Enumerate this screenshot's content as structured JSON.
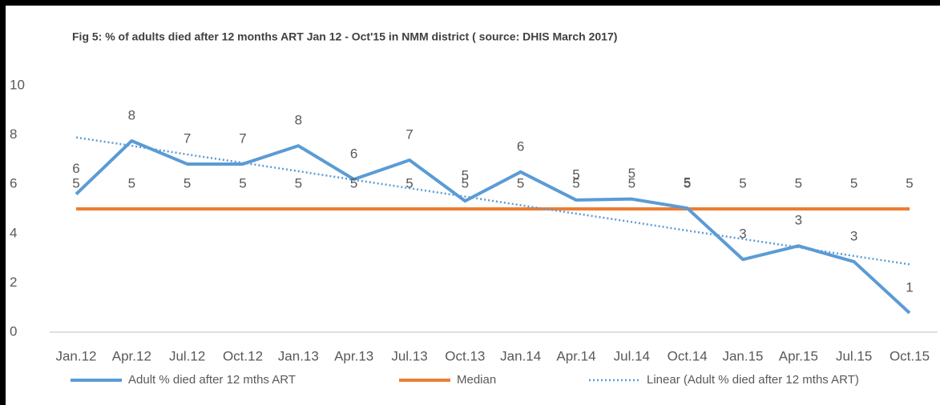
{
  "chart_data": {
    "type": "line",
    "title": "Fig 5: % of adults died after 12 months ART Jan 12 - Oct'15 in NMM district ( source: DHIS March 2017)",
    "categories": [
      "Jan.12",
      "Apr.12",
      "Jul.12",
      "Oct.12",
      "Jan.13",
      "Apr.13",
      "Jul.13",
      "Oct.13",
      "Jan.14",
      "Apr.14",
      "Jul.14",
      "Oct.14",
      "Jan.15",
      "Apr.15",
      "Jul.15",
      "Oct.15"
    ],
    "ylim": [
      0,
      10
    ],
    "yticks": [
      0,
      2,
      4,
      6,
      8,
      10
    ],
    "grid": false,
    "legend": "bottom",
    "series": [
      {
        "name": "Adult % died after 12 mths ART",
        "color": "#5b9bd5",
        "style": "solid",
        "values": [
          5.6,
          7.76,
          6.82,
          6.82,
          7.56,
          6.2,
          6.98,
          5.32,
          6.5,
          5.36,
          5.4,
          5.03,
          2.95,
          3.5,
          2.86,
          0.78
        ],
        "value_labels": [
          "6",
          "8",
          "7",
          "7",
          "8",
          "6",
          "7",
          "5",
          "6",
          "5",
          "5",
          "5",
          "3",
          "3",
          "3",
          "1"
        ]
      },
      {
        "name": "Median",
        "color": "#ed7d31",
        "style": "solid",
        "values": [
          5,
          5,
          5,
          5,
          5,
          5,
          5,
          5,
          5,
          5,
          5,
          5,
          5,
          5,
          5,
          5
        ]
      },
      {
        "name": "Linear (Adult % died after 12 mths ART)",
        "color": "#5b9bd5",
        "style": "dotted",
        "values": [
          7.9,
          7.56,
          7.21,
          6.87,
          6.53,
          6.18,
          5.84,
          5.5,
          5.15,
          4.81,
          4.47,
          4.12,
          3.78,
          3.44,
          3.09,
          2.75
        ]
      }
    ]
  }
}
